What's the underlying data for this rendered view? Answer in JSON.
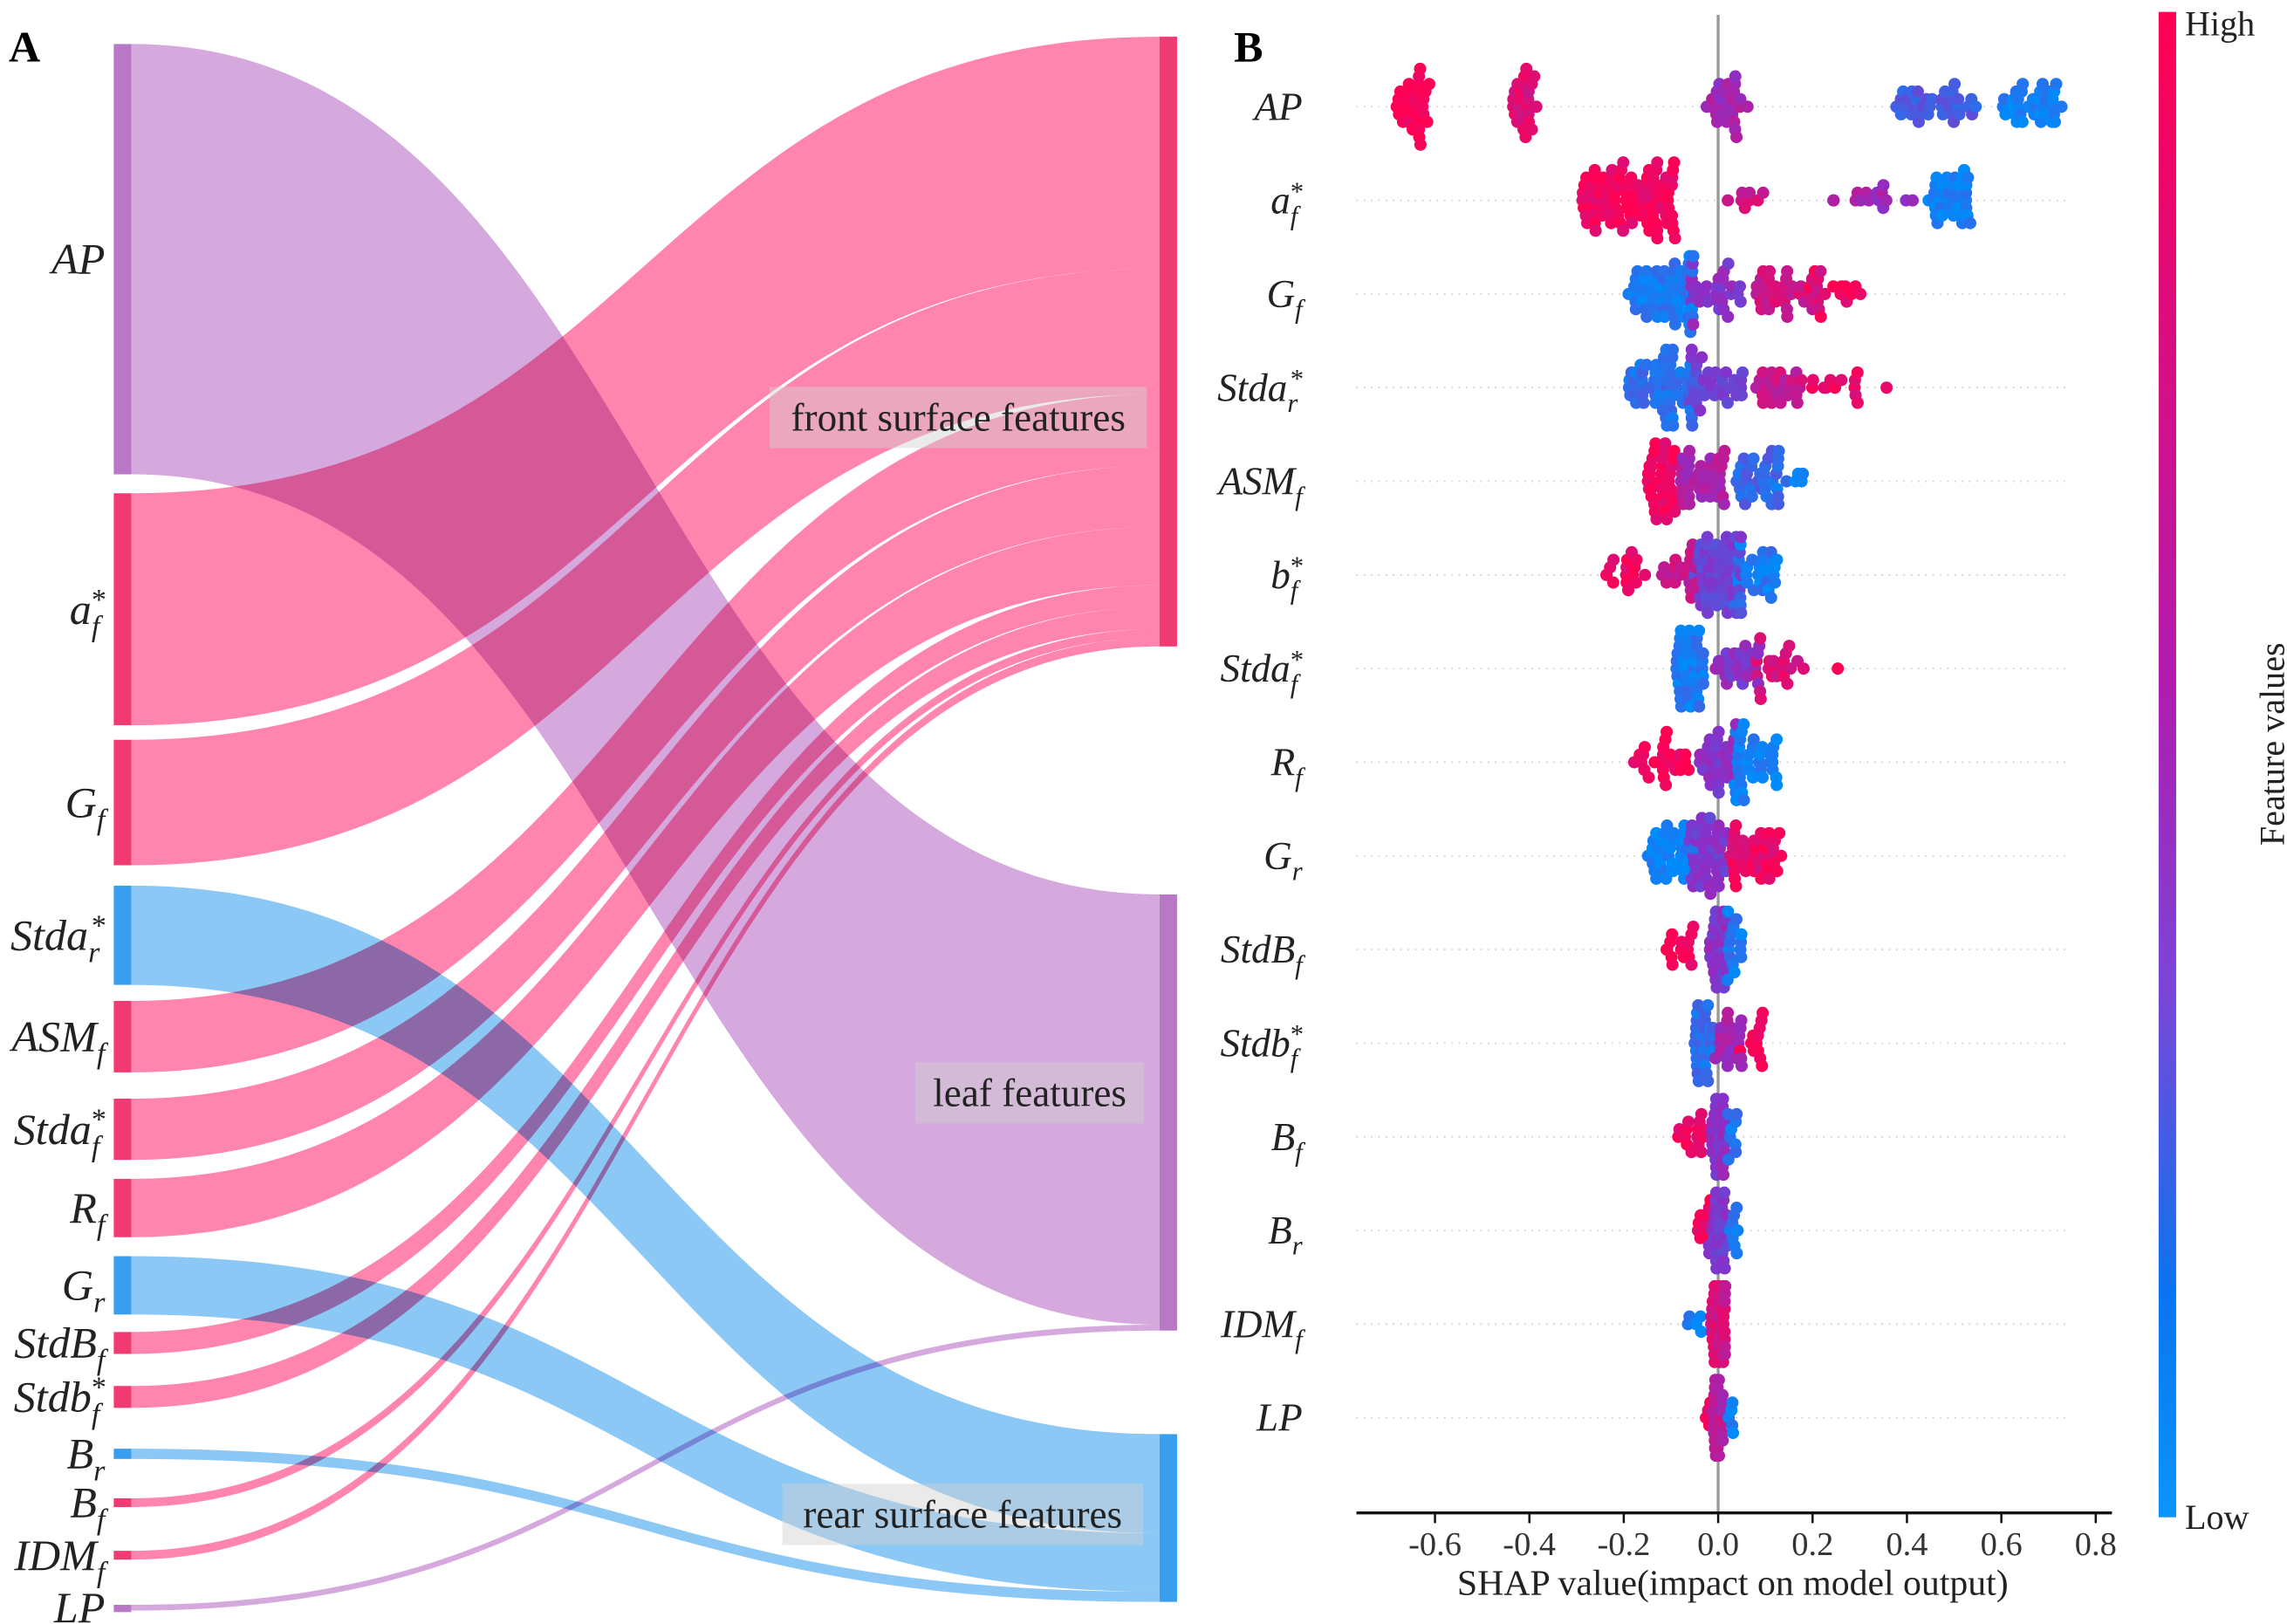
{
  "panel_labels": {
    "a": "A",
    "b": "B"
  },
  "colors": {
    "front": "#f03a72",
    "leaf": "#b878c6",
    "rear": "#3a9eee",
    "link_front": "#ff3478",
    "link_leaf": "#b970c8",
    "link_rear": "#3fa3ee",
    "cmap_low": "#008bfb",
    "cmap_mid": "#8a2fc8",
    "cmap_high": "#ff0052"
  },
  "chart_data": [
    {
      "type": "sankey",
      "title": "A",
      "targets": [
        {
          "id": "front",
          "label": "front surface features"
        },
        {
          "id": "leaf",
          "label": "leaf features"
        },
        {
          "id": "rear",
          "label": "rear surface features"
        }
      ],
      "sources": [
        {
          "base": "AP",
          "sub": "",
          "sup": "",
          "target": "leaf",
          "value": 295
        },
        {
          "base": "a",
          "sub": "f",
          "sup": "*",
          "target": "front",
          "value": 159
        },
        {
          "base": "G",
          "sub": "f",
          "sup": "",
          "target": "front",
          "value": 86
        },
        {
          "base": "Stda",
          "sub": "r",
          "sup": "*",
          "target": "rear",
          "value": 68
        },
        {
          "base": "ASM",
          "sub": "f",
          "sup": "",
          "target": "front",
          "value": 49
        },
        {
          "base": "Stda",
          "sub": "f",
          "sup": "*",
          "target": "front",
          "value": 42
        },
        {
          "base": "R",
          "sub": "f",
          "sup": "",
          "target": "front",
          "value": 40
        },
        {
          "base": "G",
          "sub": "r",
          "sup": "",
          "target": "rear",
          "value": 40
        },
        {
          "base": "StdB",
          "sub": "f",
          "sup": "",
          "target": "front",
          "value": 15
        },
        {
          "base": "Stdb",
          "sub": "f",
          "sup": "*",
          "target": "front",
          "value": 15
        },
        {
          "base": "B",
          "sub": "r",
          "sup": "",
          "target": "rear",
          "value": 7
        },
        {
          "base": "B",
          "sub": "f",
          "sup": "",
          "target": "front",
          "value": 6
        },
        {
          "base": "IDM",
          "sub": "f",
          "sup": "",
          "target": "front",
          "value": 6
        },
        {
          "base": "LP",
          "sub": "",
          "sup": "",
          "target": "leaf",
          "value": 4
        }
      ]
    },
    {
      "type": "scatter",
      "subtype": "beeswarm",
      "title": "B",
      "xlabel": "SHAP value(impact on model output)",
      "xlim": [
        -0.77,
        0.83
      ],
      "xticks": [
        "-0.6",
        "-0.4",
        "-0.2",
        "0.0",
        "0.2",
        "0.4",
        "0.6",
        "0.8"
      ],
      "colorbar": {
        "label": "Feature values",
        "high": "High",
        "low": "Low"
      },
      "cluster_format": "[shap_center, half_width, n_points, feature_value(0=low,1=high)]",
      "features": [
        {
          "base": "AP",
          "sub": "",
          "sup": "",
          "clusters": [
            [
              -0.65,
              0.04,
              30,
              1.0
            ],
            [
              -0.41,
              0.025,
              25,
              0.85
            ],
            [
              0.02,
              0.045,
              25,
              0.6
            ],
            [
              0.46,
              0.09,
              35,
              0.25
            ],
            [
              0.67,
              0.07,
              35,
              0.05
            ]
          ]
        },
        {
          "base": "a",
          "sub": "f",
          "sup": "*",
          "clusters": [
            [
              -0.19,
              0.1,
              90,
              0.95
            ],
            [
              0.06,
              0.04,
              8,
              0.8
            ],
            [
              0.33,
              0.1,
              15,
              0.6
            ],
            [
              0.49,
              0.045,
              35,
              0.05
            ]
          ]
        },
        {
          "base": "G",
          "sub": "f",
          "sup": "",
          "clusters": [
            [
              -0.12,
              0.07,
              60,
              0.1
            ],
            [
              0.0,
              0.06,
              30,
              0.5
            ],
            [
              0.15,
              0.07,
              35,
              0.8
            ],
            [
              0.25,
              0.06,
              15,
              0.95
            ]
          ]
        },
        {
          "base": "Stda",
          "sub": "r",
          "sup": "*",
          "clusters": [
            [
              -0.12,
              0.07,
              60,
              0.15
            ],
            [
              0.0,
              0.06,
              30,
              0.4
            ],
            [
              0.12,
              0.06,
              25,
              0.75
            ],
            [
              0.24,
              0.06,
              12,
              0.9
            ],
            [
              0.36,
              0.004,
              1,
              0.95
            ]
          ]
        },
        {
          "base": "ASM",
          "sub": "f",
          "sup": "",
          "clusters": [
            [
              -0.12,
              0.03,
              35,
              0.95
            ],
            [
              -0.03,
              0.05,
              40,
              0.65
            ],
            [
              0.08,
              0.05,
              30,
              0.2
            ],
            [
              0.15,
              0.03,
              8,
              0.1
            ]
          ]
        },
        {
          "base": "b",
          "sub": "f",
          "sup": "*",
          "clusters": [
            [
              -0.22,
              0.065,
              15,
              0.95
            ],
            [
              -0.08,
              0.04,
              20,
              0.75
            ],
            [
              0.0,
              0.05,
              60,
              0.4
            ],
            [
              0.08,
              0.05,
              30,
              0.1
            ]
          ]
        },
        {
          "base": "Stda",
          "sub": "f",
          "sup": "*",
          "clusters": [
            [
              -0.06,
              0.03,
              45,
              0.1
            ],
            [
              0.04,
              0.05,
              25,
              0.5
            ],
            [
              0.14,
              0.06,
              20,
              0.85
            ],
            [
              0.25,
              0.004,
              1,
              0.95
            ]
          ]
        },
        {
          "base": "R",
          "sub": "f",
          "sup": "",
          "clusters": [
            [
              -0.12,
              0.06,
              25,
              0.95
            ],
            [
              0.0,
              0.04,
              30,
              0.5
            ],
            [
              0.08,
              0.045,
              35,
              0.05
            ]
          ]
        },
        {
          "base": "G",
          "sub": "r",
          "sup": "",
          "clusters": [
            [
              -0.1,
              0.05,
              35,
              0.05
            ],
            [
              -0.02,
              0.04,
              40,
              0.45
            ],
            [
              0.08,
              0.055,
              40,
              0.9
            ]
          ]
        },
        {
          "base": "StdB",
          "sub": "f",
          "sup": "",
          "clusters": [
            [
              -0.08,
              0.03,
              15,
              0.95
            ],
            [
              0.0,
              0.02,
              35,
              0.5
            ],
            [
              0.03,
              0.02,
              15,
              0.1
            ]
          ]
        },
        {
          "base": "Stdb",
          "sub": "f",
          "sup": "*",
          "clusters": [
            [
              -0.03,
              0.02,
              35,
              0.15
            ],
            [
              0.02,
              0.03,
              20,
              0.6
            ],
            [
              0.07,
              0.025,
              12,
              0.95
            ]
          ]
        },
        {
          "base": "B",
          "sub": "f",
          "sup": "",
          "clusters": [
            [
              -0.06,
              0.03,
              15,
              0.95
            ],
            [
              0.0,
              0.015,
              35,
              0.5
            ],
            [
              0.03,
              0.01,
              8,
              0.1
            ]
          ]
        },
        {
          "base": "B",
          "sub": "r",
          "sup": "",
          "clusters": [
            [
              -0.03,
              0.015,
              10,
              0.95
            ],
            [
              0.0,
              0.02,
              35,
              0.45
            ],
            [
              0.04,
              0.015,
              8,
              0.1
            ]
          ]
        },
        {
          "base": "IDM",
          "sub": "f",
          "sup": "",
          "clusters": [
            [
              -0.05,
              0.015,
              5,
              0.05
            ],
            [
              0.0,
              0.015,
              45,
              0.8
            ]
          ]
        },
        {
          "base": "LP",
          "sub": "",
          "sup": "",
          "clusters": [
            [
              -0.02,
              0.01,
              5,
              0.95
            ],
            [
              0.0,
              0.01,
              35,
              0.7
            ],
            [
              0.03,
              0.008,
              5,
              0.05
            ]
          ]
        }
      ]
    }
  ]
}
